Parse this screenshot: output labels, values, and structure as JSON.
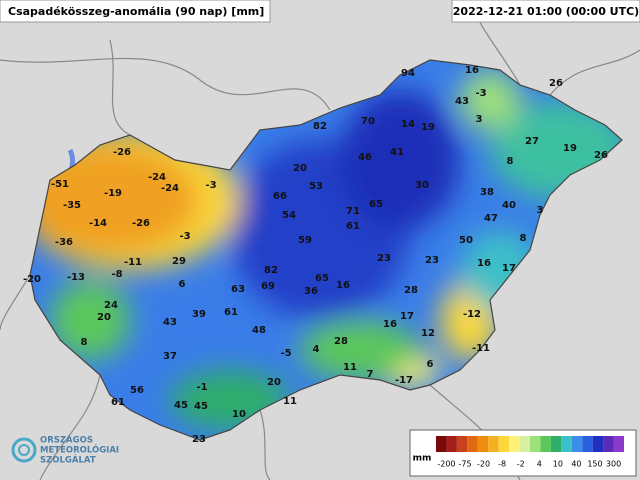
{
  "header": {
    "title": "Csapadékösszeg-anomália (90 nap) [mm]",
    "timestamp": "2022-12-21 01:00 (00:00 UTC)"
  },
  "stations": [
    94,
    16,
    -3,
    26,
    43,
    3,
    82,
    70,
    14,
    19,
    27,
    19,
    26,
    8,
    20,
    46,
    41,
    -26,
    -24,
    -51,
    -24,
    -3,
    53,
    30,
    38,
    -19,
    40,
    3,
    -35,
    66,
    54,
    71,
    65,
    47,
    -14,
    -26,
    61,
    -3,
    59,
    50,
    8,
    -36,
    -11,
    29,
    23,
    23,
    16,
    17,
    -8,
    82,
    -20,
    -13,
    6,
    65,
    63,
    69,
    36,
    16,
    28,
    24,
    20,
    39,
    43,
    61,
    -12,
    17,
    16,
    12,
    48,
    8,
    28,
    -5,
    4,
    -11,
    37,
    11,
    6,
    7,
    -17,
    20,
    -1,
    56,
    11,
    61,
    45,
    45,
    10,
    23
  ],
  "legend": {
    "unit": "mm",
    "ticks": [
      -200,
      -75,
      -20,
      -8,
      -2,
      4,
      10,
      40,
      150,
      300
    ],
    "colors": [
      "#7a0a0a",
      "#a3201a",
      "#c8401c",
      "#e06a14",
      "#f08c10",
      "#f5b020",
      "#fad83a",
      "#fff27a",
      "#d6f0a0",
      "#9ee07a",
      "#5cc85c",
      "#2fae6a",
      "#3cc0c8",
      "#3a8ee8",
      "#2a5fe0",
      "#2030c0",
      "#5a2ab8",
      "#8a3ac8"
    ]
  },
  "logo": {
    "lines": [
      "ORSZÁGOS",
      "METEOROLÓGIAI",
      "SZOLGÁLAT"
    ]
  }
}
